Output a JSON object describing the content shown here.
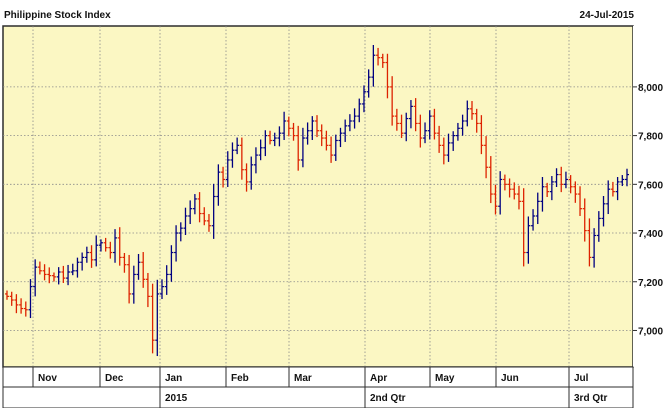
{
  "chart_data": {
    "type": "ohlc",
    "title": "Philippine Stock Index",
    "date_label": "24-Jul-2015",
    "ylim": [
      6850,
      8250
    ],
    "y_ticks": [
      7000,
      7200,
      7400,
      7600,
      7800,
      8000
    ],
    "y_tick_labels": [
      "7,000",
      "7,200",
      "7,400",
      "7,600",
      "7,800",
      "8,000"
    ],
    "y_axis_side": "right",
    "grid": true,
    "months": [
      "Nov",
      "Dec",
      "Jan",
      "Feb",
      "Mar",
      "Apr",
      "May",
      "Jun",
      "Jul"
    ],
    "period_labels": [
      {
        "label": "2015",
        "month": "Jan"
      },
      {
        "label": "2nd Qtr",
        "month": "Apr"
      },
      {
        "label": "3rd Qtr",
        "month": "Jul"
      }
    ],
    "up_color": "#000080",
    "down_color": "#dd2200",
    "background_color": "#fbf7c3",
    "close_series": [
      7140,
      7125,
      7105,
      7090,
      7085,
      7180,
      7260,
      7245,
      7230,
      7225,
      7220,
      7240,
      7215,
      7240,
      7245,
      7280,
      7300,
      7320,
      7290,
      7350,
      7360,
      7340,
      7320,
      7380,
      7300,
      7270,
      7150,
      7230,
      7280,
      7210,
      7140,
      6960,
      7150,
      7180,
      7230,
      7320,
      7400,
      7420,
      7470,
      7500,
      7540,
      7480,
      7450,
      7430,
      7550,
      7650,
      7620,
      7700,
      7740,
      7760,
      7660,
      7610,
      7680,
      7720,
      7750,
      7800,
      7780,
      7790,
      7810,
      7860,
      7830,
      7800,
      7700,
      7790,
      7820,
      7860,
      7820,
      7790,
      7760,
      7720,
      7780,
      7810,
      7840,
      7860,
      7880,
      7930,
      7980,
      8040,
      8130,
      8120,
      8100,
      8000,
      7880,
      7850,
      7810,
      7870,
      7920,
      7850,
      7790,
      7820,
      7880,
      7810,
      7760,
      7720,
      7770,
      7800,
      7830,
      7860,
      7910,
      7890,
      7850,
      7760,
      7670,
      7560,
      7510,
      7620,
      7600,
      7580,
      7560,
      7530,
      7320,
      7430,
      7470,
      7530,
      7590,
      7570,
      7610,
      7640,
      7600,
      7620,
      7590,
      7560,
      7500,
      7410,
      7300,
      7390,
      7460,
      7520,
      7580,
      7570,
      7610,
      7620,
      7640
    ]
  }
}
